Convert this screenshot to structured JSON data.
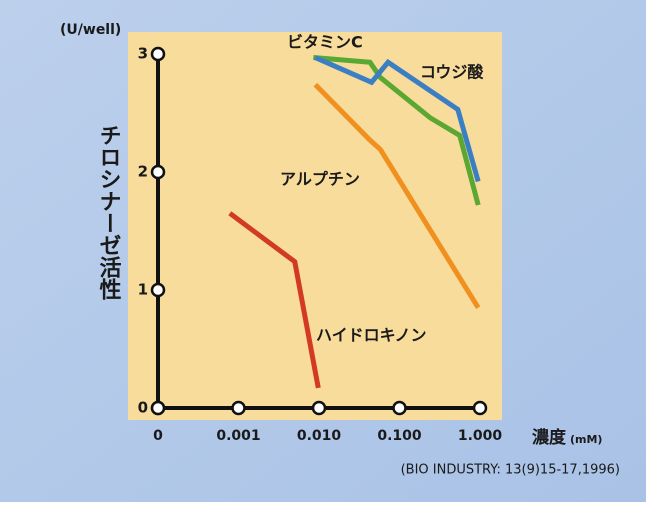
{
  "chart_data": {
    "type": "line",
    "y_unit": "(U/well)",
    "y_label": "チロシナーゼ活性",
    "x_label": "濃度",
    "x_unit": "(mM)",
    "source": "(BIO INDUSTRY: 13(9)15-17,1996)",
    "xscale": "log",
    "xlim": [
      0.0001,
      1
    ],
    "xticks": [
      {
        "value": 0.0001,
        "label": "0"
      },
      {
        "value": 0.001,
        "label": "0.001"
      },
      {
        "value": 0.01,
        "label": "0.010"
      },
      {
        "value": 0.1,
        "label": "0.100"
      },
      {
        "value": 1,
        "label": "1.000"
      }
    ],
    "ylim": [
      0,
      3
    ],
    "yticks": [
      0,
      1,
      2,
      3
    ],
    "series": [
      {
        "name": "ビタミンC",
        "color": "#5aa832",
        "x": [
          0.0085,
          0.043,
          0.058,
          0.24,
          0.56,
          0.95
        ],
        "values": [
          2.97,
          2.93,
          2.8,
          2.46,
          2.31,
          1.72
        ]
      },
      {
        "name": "コウジ酸",
        "color": "#3a7fc4",
        "x": [
          0.009,
          0.045,
          0.072,
          0.53,
          0.95
        ],
        "values": [
          2.97,
          2.76,
          2.93,
          2.53,
          1.92
        ]
      },
      {
        "name": "アルプチン",
        "color": "#f0901e",
        "x": [
          0.009,
          0.043,
          0.058,
          0.95
        ],
        "values": [
          2.74,
          2.27,
          2.19,
          0.85
        ]
      },
      {
        "name": "ハイドロキノン",
        "color": "#d23a24",
        "x": [
          0.00078,
          0.005,
          0.0098
        ],
        "values": [
          1.65,
          1.24,
          0.17
        ]
      }
    ]
  }
}
